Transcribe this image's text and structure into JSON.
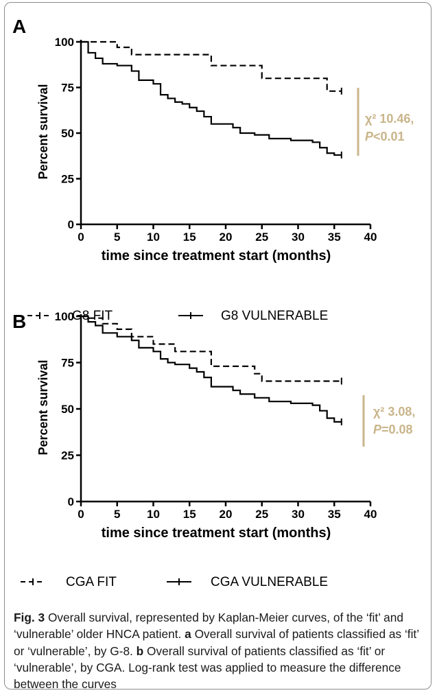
{
  "colors": {
    "stat": "#c9b58a",
    "line": "#000000",
    "caption_text": "#1a1a1a"
  },
  "chart_data": [
    {
      "type": "line",
      "panel_label": "A",
      "xlabel": "time since treatment start (months)",
      "ylabel": "Percent survival",
      "xlim": [
        0,
        40
      ],
      "ylim": [
        0,
        100
      ],
      "xticks": [
        "0",
        "5",
        "10",
        "15",
        "20",
        "25",
        "30",
        "35",
        "40"
      ],
      "yticks": [
        "0",
        "25",
        "50",
        "75",
        "100"
      ],
      "step": true,
      "series": [
        {
          "name": "G8 FIT",
          "style": "dashed",
          "x": [
            0,
            1,
            5,
            7,
            18,
            25,
            34,
            36
          ],
          "y": [
            100,
            100,
            97,
            93,
            87,
            80,
            73,
            73
          ]
        },
        {
          "name": "G8 VULNERABLE",
          "style": "solid",
          "x": [
            0,
            1,
            2,
            3,
            5,
            7,
            8,
            10,
            11,
            12,
            13,
            14,
            15,
            16,
            17,
            18,
            21,
            22,
            24,
            26,
            29,
            32,
            33,
            34,
            35,
            36
          ],
          "y": [
            100,
            94,
            91,
            88,
            87,
            84,
            79,
            77,
            71,
            69,
            67,
            66,
            64,
            62,
            59,
            55,
            53,
            50,
            49,
            47,
            46,
            45,
            42,
            39,
            38,
            38
          ]
        }
      ],
      "annotation": {
        "line1": "χ² 10.46,",
        "line2_italic": "P",
        "line2_rest": "<0.01"
      },
      "legend_position": "bottom"
    },
    {
      "type": "line",
      "panel_label": "B",
      "xlabel": "time since treatment start (months)",
      "ylabel": "Percent survival",
      "xlim": [
        0,
        40
      ],
      "ylim": [
        0,
        100
      ],
      "xticks": [
        "0",
        "5",
        "10",
        "15",
        "20",
        "25",
        "30",
        "35",
        "40"
      ],
      "yticks": [
        "0",
        "25",
        "50",
        "75",
        "100"
      ],
      "step": true,
      "series": [
        {
          "name": "CGA FIT",
          "style": "dashed",
          "x": [
            0,
            1,
            3,
            5,
            7,
            10,
            13,
            18,
            24,
            25,
            36
          ],
          "y": [
            100,
            99,
            96,
            93,
            89,
            85,
            81,
            73,
            69,
            65,
            65
          ]
        },
        {
          "name": "CGA VULNERABLE",
          "style": "solid",
          "x": [
            0,
            1,
            2,
            3,
            5,
            7,
            8,
            10,
            11,
            12,
            13,
            15,
            16,
            17,
            18,
            21,
            22,
            24,
            26,
            29,
            32,
            33,
            34,
            35,
            36
          ],
          "y": [
            100,
            97,
            95,
            91,
            89,
            87,
            83,
            81,
            77,
            75,
            74,
            72,
            70,
            67,
            62,
            60,
            58,
            56,
            54,
            53,
            52,
            49,
            45,
            43,
            43
          ]
        }
      ],
      "annotation": {
        "line1": "χ² 3.08,",
        "line2_italic": "P",
        "line2_rest": "=0.08"
      },
      "legend_position": "bottom"
    }
  ],
  "caption": {
    "fig_label": "Fig. 3",
    "intro": "Overall survival, represented by Kaplan-Meier curves, of the ‘fit’ and ‘vulnerable’ older HNCA patient.",
    "a_label": "a",
    "a_text": "Overall survival of patients classified as ‘fit’ or ‘vulnerable’, by G-8.",
    "b_label": "b",
    "b_text": "Overall survival of patients classified as ‘fit’ or ‘vulnerable’, by CGA. Log-rank test was applied to measure the difference between the curves"
  }
}
